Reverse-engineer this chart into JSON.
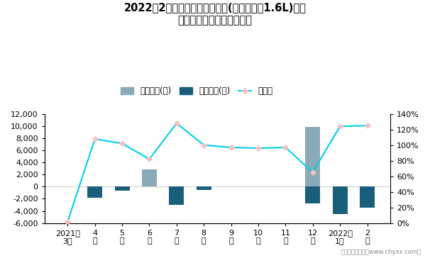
{
  "title_line1": "2022年2月轩逸旗下最畅销轿车(新轩逸经典1.6L)近一",
  "title_line2": "年库存情况及产销率统计图",
  "categories": [
    "2021年\n3月",
    "4\n月",
    "5\n月",
    "6\n月",
    "7\n月",
    "8\n月",
    "9\n月",
    "10\n月",
    "11\n月",
    "12\n月",
    "2022年\n1月",
    "2\n月"
  ],
  "jiaya_values": [
    0,
    0,
    0,
    2800,
    0,
    0,
    100,
    0,
    100,
    9800,
    0,
    0
  ],
  "qingcang_values": [
    0,
    -1800,
    -700,
    0,
    -3000,
    -500,
    0,
    0,
    0,
    -2800,
    -4500,
    -3500
  ],
  "chanxiao_values": [
    0.02,
    1.08,
    1.02,
    0.82,
    1.28,
    1.0,
    0.97,
    0.96,
    0.97,
    0.65,
    1.24,
    1.25
  ],
  "bar_color_jiaya": "#8aaab8",
  "bar_color_qingcang": "#1a5f7a",
  "line_color": "#00cfeb",
  "marker_facecolor": "#f8c0c0",
  "marker_edgecolor": "#f8c0c0",
  "ylim_left": [
    -6000,
    12000
  ],
  "ylim_right": [
    0.0,
    1.4
  ],
  "ylabel_left_ticks": [
    -6000,
    -4000,
    -2000,
    0,
    2000,
    4000,
    6000,
    8000,
    10000,
    12000
  ],
  "ylabel_right_ticks": [
    0.0,
    0.2,
    0.4,
    0.6,
    0.8,
    1.0,
    1.2,
    1.4
  ],
  "legend_labels": [
    "积压库存(辆)",
    "清仓库存(辆)",
    "产销率"
  ],
  "footer": "制图：智研咨询（www.chyxx.com）"
}
